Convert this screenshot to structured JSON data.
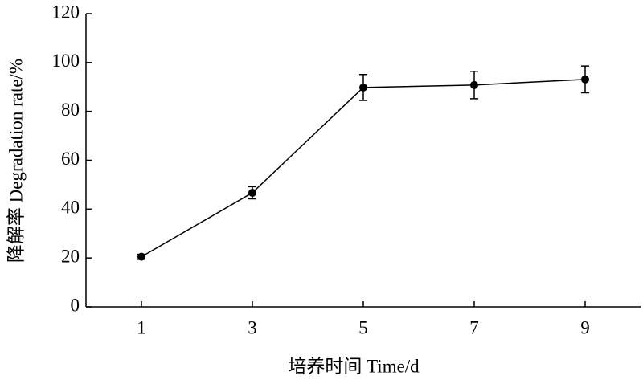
{
  "chart_data": {
    "type": "line",
    "x": [
      1,
      3,
      5,
      7,
      9
    ],
    "values": [
      20.5,
      46.7,
      89.8,
      90.8,
      93.1
    ],
    "errors": [
      1,
      2.5,
      5.3,
      5.6,
      5.5
    ],
    "color": "#000000",
    "xlim": [
      0,
      10
    ],
    "xticks": [
      1,
      3,
      5,
      7,
      9
    ],
    "ylim": [
      0,
      120
    ],
    "yticks": [
      0,
      20,
      40,
      60,
      80,
      100,
      120
    ],
    "xlabel": "培养时间 Time/d",
    "ylabel": "降解率 Degradation rate/%"
  }
}
